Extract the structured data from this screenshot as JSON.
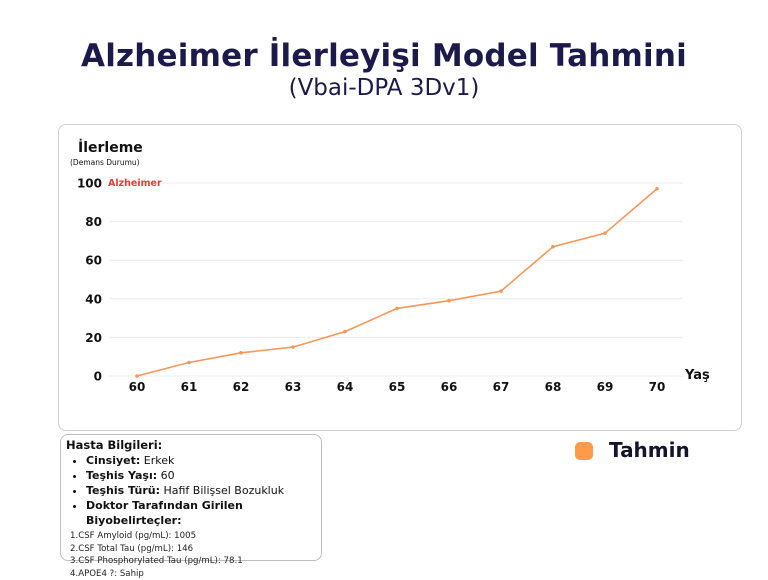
{
  "header": {
    "title": "Alzheimer İlerleyişi Model Tahmini",
    "subtitle": "(Vbai-DPA 3Dv1)"
  },
  "legend": {
    "label": "Tahmin",
    "color": "#ff9a4a"
  },
  "patient_info": {
    "title": "Hasta Bilgileri:",
    "items": [
      {
        "key": "Cinsiyet:",
        "value": "Erkek"
      },
      {
        "key": "Teşhis Yaşı:",
        "value": "60"
      },
      {
        "key": "Teşhis Türü:",
        "value": "Hafif Bilişsel Bozukluk"
      },
      {
        "key": "Doktor Tarafından Girilen Biyobelirteçler:",
        "value": ""
      }
    ],
    "biomarkers": [
      "1.CSF Amyloid (pg/mL): 1005",
      "2.CSF Total Tau (pg/mL): 146",
      "3.CSF Phosphorylated Tau (pg/mL): 78.1",
      "4.APOE4 ?: Sahip"
    ]
  },
  "chart_data": {
    "type": "line",
    "ylabel": "İlerleme",
    "ylabel_sub": "(Demans Durumu)",
    "xlabel": "Yaş",
    "annotation": "Alzheimer",
    "annotation_color": "#e0413a",
    "line_color": "#f5965a",
    "x": [
      60,
      61,
      62,
      63,
      64,
      65,
      66,
      67,
      68,
      69,
      70
    ],
    "series": [
      {
        "values": [
          0,
          7,
          12,
          15,
          23,
          35,
          39,
          44,
          67,
          74,
          97
        ]
      }
    ],
    "yticks": [
      0,
      20,
      40,
      60,
      80,
      100
    ],
    "ylim": [
      0,
      100
    ],
    "grid": true
  }
}
